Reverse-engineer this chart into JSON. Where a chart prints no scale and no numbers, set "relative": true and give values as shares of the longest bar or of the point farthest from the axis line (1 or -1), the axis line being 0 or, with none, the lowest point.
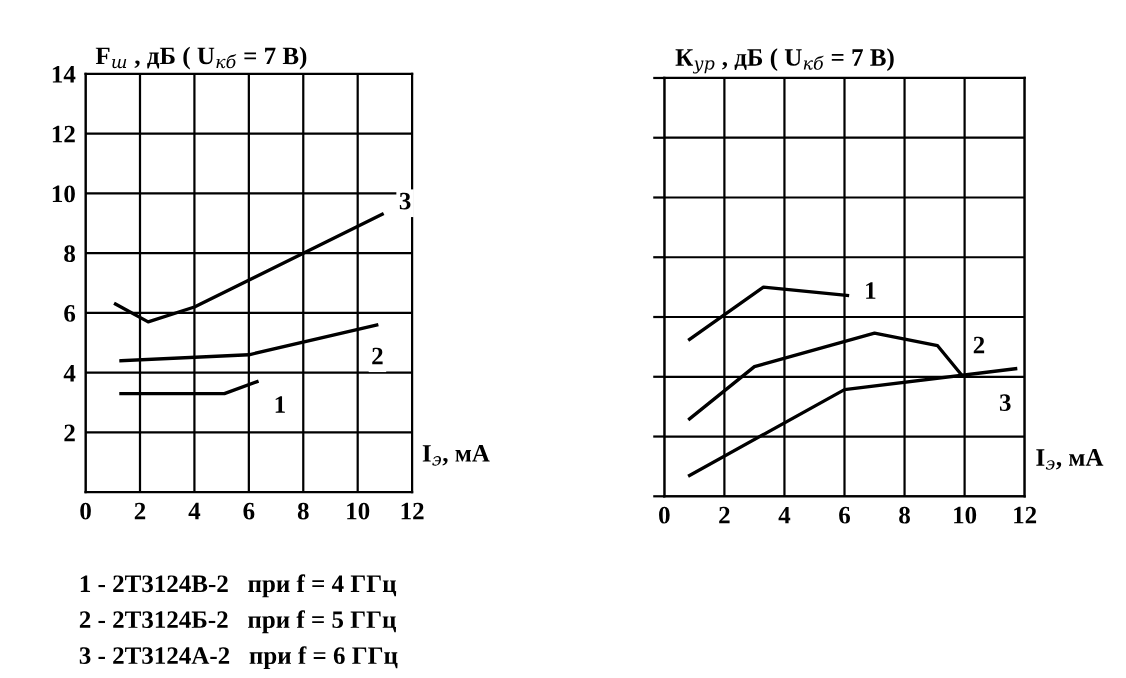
{
  "chart_data": [
    {
      "type": "line",
      "ylabel": "F$_{ш}$ , дБ ( U$_{кб}$ = 7 В)",
      "xlabel": "I$_{э}$, мА",
      "xlim": [
        0,
        12
      ],
      "ylim": [
        0,
        14
      ],
      "xticks": [
        0,
        2,
        4,
        6,
        8,
        10,
        12
      ],
      "yticks": [
        2,
        4,
        6,
        8,
        10,
        12,
        14
      ],
      "grid": true,
      "legend": false,
      "series": [
        {
          "name": "1",
          "color": "#000000",
          "x": [
            1.3,
            5.1,
            6.3
          ],
          "values": [
            3.3,
            3.3,
            3.7
          ]
        },
        {
          "name": "2",
          "color": "#000000",
          "x": [
            1.3,
            6,
            10.7
          ],
          "values": [
            4.4,
            4.6,
            5.6
          ]
        },
        {
          "name": "3",
          "color": "#000000",
          "x": [
            1.1,
            2.3,
            4,
            10.9
          ],
          "values": [
            6.3,
            5.7,
            6.2,
            9.3
          ]
        }
      ],
      "annotations": [
        "1 - 2Т3124В-2   при f = 4 ГГц",
        "2 - 2Т3124Б-2   при f = 5 ГГц",
        "3 - 2Т3124А-2   при f = 6 ГГц"
      ]
    },
    {
      "type": "line",
      "relative": true,
      "ylabel": "К$_{ур}$ , дБ ( U$_{кб}$ = 7 В)",
      "xlabel": "I$_{э}$, мА",
      "xlim": [
        0,
        12
      ],
      "xticks": [
        0,
        2,
        4,
        6,
        8,
        10,
        12
      ],
      "grid": true,
      "legend": false,
      "series": [
        {
          "name": "1",
          "color": "#000000",
          "x": [
            0.84,
            3.3,
            6.1
          ],
          "values": [
            0.75,
            1,
            0.96
          ]
        },
        {
          "name": "2",
          "color": "#000000",
          "x": [
            0.84,
            3,
            7,
            9.1,
            9.9
          ],
          "values": [
            0.37,
            0.62,
            0.78,
            0.72,
            0.58
          ]
        },
        {
          "name": "3",
          "color": "#000000",
          "x": [
            0.84,
            6,
            11.7
          ],
          "values": [
            0.1,
            0.51,
            0.61
          ]
        }
      ]
    }
  ]
}
